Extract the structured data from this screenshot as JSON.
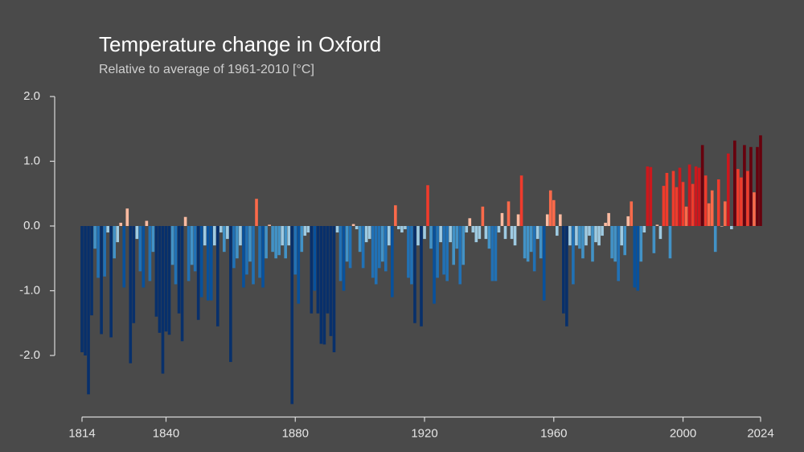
{
  "chart_data": {
    "type": "bar",
    "title": "Temperature change in Oxford",
    "subtitle": "Relative to average of 1961-2010  [°C]",
    "xlim": [
      1814,
      2024
    ],
    "xticks": [
      1814,
      1840,
      1880,
      1920,
      1960,
      2000,
      2024
    ],
    "ylim": [
      -2.95,
      2.0
    ],
    "yticks": [
      {
        "value": 2,
        "label": "2.0"
      },
      {
        "value": 1,
        "label": "1.0"
      },
      {
        "value": 0,
        "label": "0.0"
      },
      {
        "value": -1,
        "label": "-1.0"
      },
      {
        "value": -2,
        "label": "-2.0"
      }
    ],
    "palette": [
      "#08306b",
      "#08519c",
      "#2171b5",
      "#4292c6",
      "#9ecae1",
      "#fcbba1",
      "#fb6a4a",
      "#ef3b2c",
      "#cb181d",
      "#67000d"
    ],
    "start_year": 1814,
    "values": [
      -1.95,
      -2.0,
      -2.6,
      -1.38,
      -0.35,
      -0.8,
      -1.67,
      -0.78,
      -0.1,
      -1.72,
      -0.5,
      -0.25,
      0.05,
      -0.95,
      0.27,
      -2.12,
      -1.5,
      -0.2,
      -0.7,
      -0.95,
      0.08,
      -0.85,
      -0.4,
      -1.4,
      -1.65,
      -2.28,
      -1.63,
      -1.68,
      -0.6,
      -0.9,
      -1.35,
      -1.78,
      0.14,
      -0.85,
      -0.6,
      -0.7,
      -1.45,
      -1.1,
      -0.3,
      -1.15,
      -1.15,
      -0.3,
      -1.55,
      -0.1,
      -0.4,
      -0.2,
      -2.1,
      -0.65,
      -0.5,
      -0.3,
      -0.95,
      -0.75,
      -0.55,
      -0.9,
      0.42,
      -0.8,
      -0.95,
      -0.5,
      0.02,
      -0.4,
      -0.5,
      -0.45,
      -0.3,
      -0.5,
      -0.3,
      -2.75,
      -0.75,
      -1.2,
      -0.4,
      -0.15,
      -0.1,
      -1.35,
      -1.0,
      -1.35,
      -1.82,
      -1.83,
      -1.35,
      -1.7,
      -1.95,
      -0.1,
      -0.85,
      -1.0,
      -0.55,
      -0.65,
      0.03,
      -0.05,
      -0.4,
      -0.65,
      -0.25,
      -0.2,
      -0.8,
      -0.9,
      -0.65,
      -0.55,
      -0.7,
      -0.3,
      -1.1,
      0.32,
      -0.05,
      -0.1,
      -0.05,
      -0.8,
      -0.9,
      -1.5,
      -0.3,
      -1.55,
      -0.2,
      0.63,
      -0.35,
      -1.2,
      -0.8,
      -0.25,
      -0.75,
      -0.85,
      -0.25,
      -0.6,
      -0.35,
      -0.9,
      -0.6,
      -0.1,
      0.12,
      -0.1,
      -0.25,
      -0.2,
      0.3,
      -0.2,
      -0.35,
      -0.85,
      -0.85,
      -0.1,
      0.2,
      -0.2,
      0.38,
      -0.2,
      -0.3,
      0.18,
      0.78,
      -0.5,
      -0.55,
      -0.4,
      -0.7,
      -0.2,
      -0.5,
      -1.15,
      0.18,
      0.55,
      0.4,
      -0.15,
      0.18,
      -1.35,
      -1.55,
      -0.3,
      -0.9,
      -0.3,
      -0.35,
      -0.5,
      -0.3,
      -0.15,
      -0.55,
      -0.25,
      -0.3,
      -0.15,
      0.05,
      0.2,
      -0.5,
      -0.55,
      -0.85,
      -0.3,
      -0.45,
      0.15,
      0.38,
      -0.95,
      -1.0,
      -0.55,
      -0.1,
      0.92,
      0.91,
      -0.42,
      0.02,
      -0.2,
      0.62,
      0.82,
      -0.5,
      0.85,
      0.6,
      0.9,
      0.68,
      0.3,
      0.95,
      0.65,
      0.92,
      0.9,
      1.25,
      0.78,
      0.35,
      0.55,
      -0.4,
      0.72,
      0.0,
      0.38,
      1.12,
      -0.05,
      1.32,
      0.88,
      0.75,
      1.25,
      0.85,
      1.22,
      0.52,
      1.22,
      1.4
    ]
  }
}
